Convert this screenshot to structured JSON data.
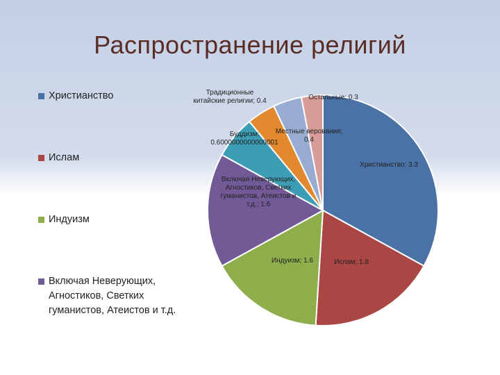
{
  "slide": {
    "title": "Распространение религий"
  },
  "chart_data": {
    "type": "pie",
    "title": "",
    "categories": [
      "Христианство",
      "Ислам",
      "Индуизм",
      "Включая Неверующих, Агностиков, Светких гуманистов, Атеистов и т.д.",
      "Буддизм",
      "Традиционные китайские религии",
      "Местные верования",
      "Остальные"
    ],
    "values": [
      3.3,
      1.8,
      1.6,
      1.6,
      0.6000000000000001,
      0.4,
      0.4,
      0.3
    ],
    "colors": [
      "#4a72a6",
      "#aa4643",
      "#8dae4b",
      "#725a96",
      "#3c9db5",
      "#e2882e",
      "#98acd2",
      "#d89c99"
    ],
    "data_labels": [
      [
        "Христианство; 3.3"
      ],
      [
        "Ислам; 1.8"
      ],
      [
        "Индуизм; 1.6"
      ],
      [
        "Включая Неверующих,",
        "Агностиков, Светких",
        "гуманистов, Атеистов и",
        "т.д.; 1.6"
      ],
      [
        "Буддизм;",
        "0.6000000000000001"
      ],
      [
        "Традиционные",
        "китайские религии; 0.4"
      ],
      [
        "Местные верования;",
        "0.4"
      ],
      [
        "Остальные; 0.3"
      ]
    ],
    "legend": {
      "position": "left",
      "visible_entries": [
        "Христианство",
        "Ислам",
        "Индуизм",
        "Включая Неверующих, Агностиков, Светких гуманистов, Атеистов и т.д."
      ]
    }
  }
}
